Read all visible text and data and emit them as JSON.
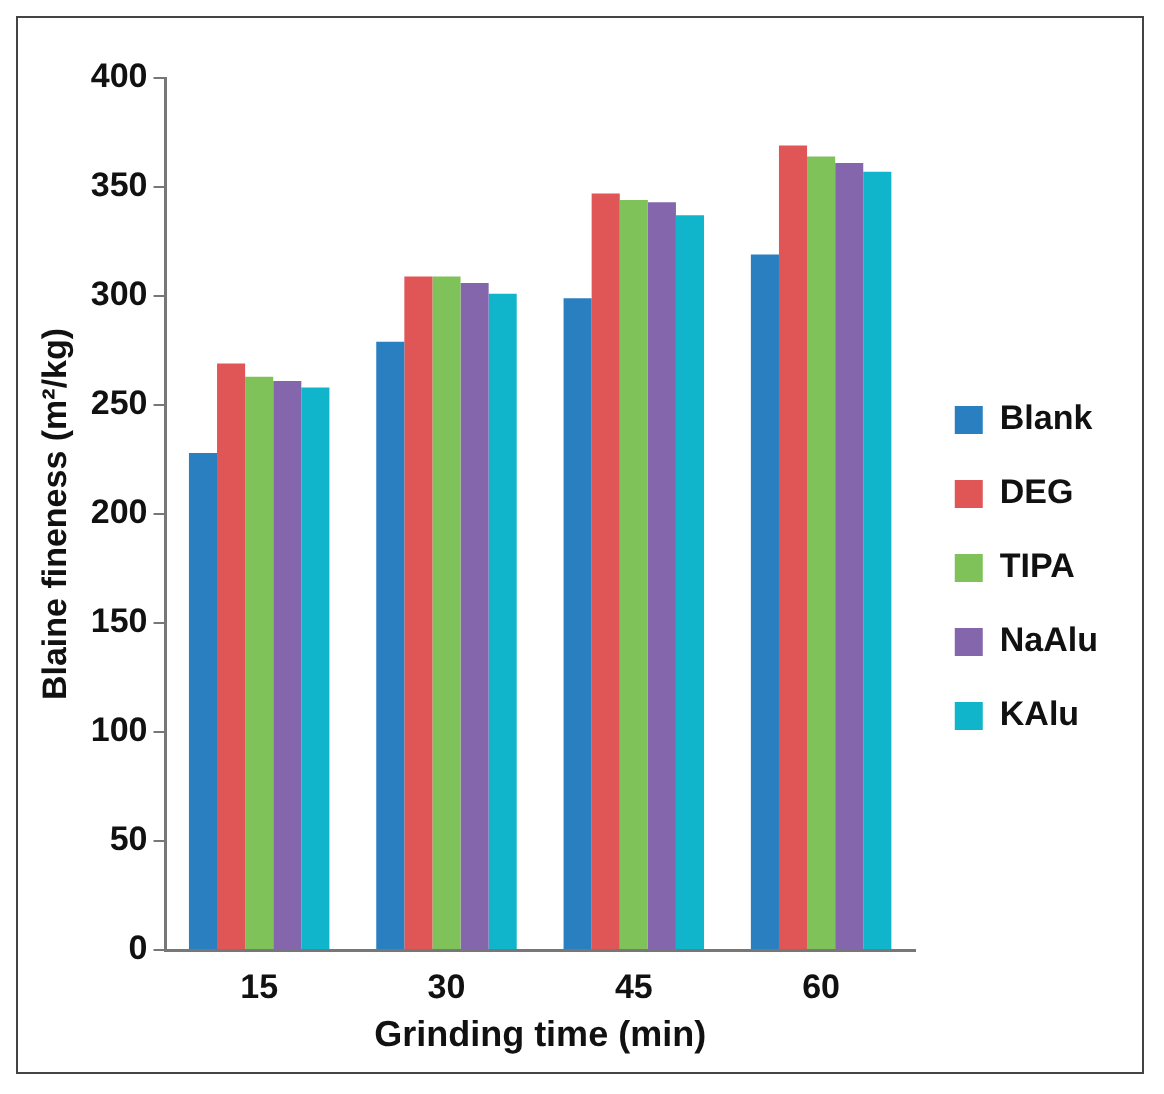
{
  "chart_data": {
    "type": "bar",
    "xlabel": "Grinding time (min)",
    "ylabel": "Blaine fineness (m²/kg)",
    "categories": [
      "15",
      "30",
      "45",
      "60"
    ],
    "series": [
      {
        "name": "Blank",
        "color": "#2a7fc0",
        "values": [
          228,
          279,
          299,
          319
        ]
      },
      {
        "name": "DEG",
        "color": "#e05555",
        "values": [
          269,
          309,
          347,
          369
        ]
      },
      {
        "name": "TIPA",
        "color": "#80c25a",
        "values": [
          263,
          309,
          344,
          364
        ]
      },
      {
        "name": "NaAlu",
        "color": "#8466ad",
        "values": [
          261,
          306,
          343,
          361
        ]
      },
      {
        "name": "KAlu",
        "color": "#10b5cc",
        "values": [
          258,
          301,
          337,
          357
        ]
      }
    ],
    "ylim": [
      0,
      400
    ],
    "yticks": [
      0,
      50,
      100,
      150,
      200,
      250,
      300,
      350,
      400
    ],
    "grid": false,
    "legend": "right"
  }
}
